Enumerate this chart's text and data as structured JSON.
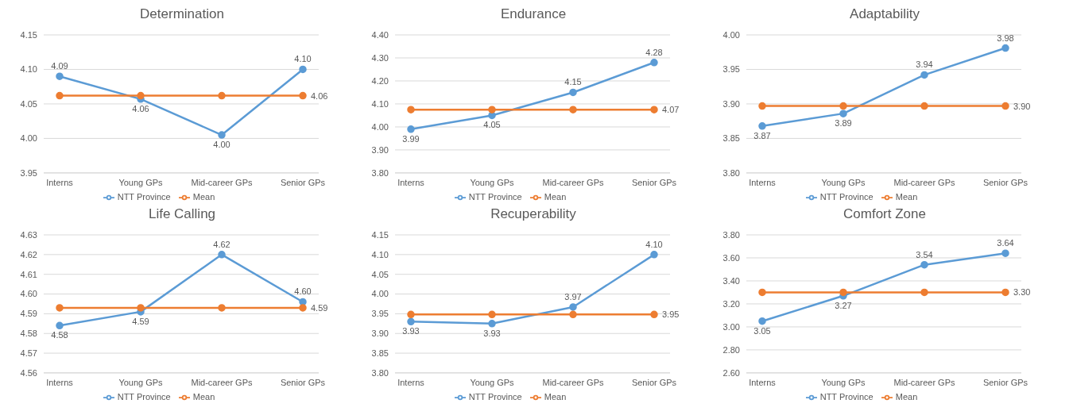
{
  "chart_data": [
    {
      "type": "line",
      "title": "Determination",
      "categories": [
        "Interns",
        "Young GPs",
        "Mid-career GPs",
        "Senior GPs"
      ],
      "ylim": [
        3.95,
        4.15
      ],
      "yticks": [
        {
          "value": 3.95,
          "label": "3.95"
        },
        {
          "value": 4.0,
          "label": "4.00"
        },
        {
          "value": 4.05,
          "label": "4.05"
        },
        {
          "value": 4.1,
          "label": "4.10"
        },
        {
          "value": 4.15,
          "label": "4.15"
        }
      ],
      "grid": "y",
      "legend": "bottom",
      "marker": "circle",
      "series": [
        {
          "name": "NTT Province",
          "color": "#5b9bd5",
          "values": [
            4.09,
            4.057,
            4.005,
            4.1
          ],
          "value_labels": [
            "4.09",
            "4.06",
            "4.00",
            "4.10"
          ]
        },
        {
          "name": "Mean",
          "color": "#ed7d31",
          "values": [
            4.062,
            4.062,
            4.062,
            4.062
          ],
          "value_labels": [
            null,
            null,
            null,
            "4.06"
          ]
        }
      ]
    },
    {
      "type": "line",
      "title": "Endurance",
      "categories": [
        "Interns",
        "Young GPs",
        "Mid-career GPs",
        "Senior GPs"
      ],
      "ylim": [
        3.8,
        4.4
      ],
      "yticks": [
        {
          "value": 3.8,
          "label": "3.80"
        },
        {
          "value": 3.9,
          "label": "3.90"
        },
        {
          "value": 4.0,
          "label": "4.00"
        },
        {
          "value": 4.1,
          "label": "4.10"
        },
        {
          "value": 4.2,
          "label": "4.20"
        },
        {
          "value": 4.3,
          "label": "4.30"
        },
        {
          "value": 4.4,
          "label": "4.40"
        }
      ],
      "grid": "y",
      "legend": "bottom",
      "marker": "circle",
      "series": [
        {
          "name": "NTT Province",
          "color": "#5b9bd5",
          "values": [
            3.99,
            4.05,
            4.15,
            4.28
          ],
          "value_labels": [
            "3.99",
            "4.05",
            "4.15",
            "4.28"
          ]
        },
        {
          "name": "Mean",
          "color": "#ed7d31",
          "values": [
            4.075,
            4.075,
            4.075,
            4.075
          ],
          "value_labels": [
            null,
            null,
            null,
            "4.07"
          ]
        }
      ]
    },
    {
      "type": "line",
      "title": "Adaptability",
      "categories": [
        "Interns",
        "Young GPs",
        "Mid-career GPs",
        "Senior GPs"
      ],
      "ylim": [
        3.8,
        4.0
      ],
      "yticks": [
        {
          "value": 3.8,
          "label": "3.80"
        },
        {
          "value": 3.85,
          "label": "3.85"
        },
        {
          "value": 3.9,
          "label": "3.90"
        },
        {
          "value": 3.95,
          "label": "3.95"
        },
        {
          "value": 4.0,
          "label": "4.00"
        }
      ],
      "grid": "y",
      "legend": "bottom",
      "marker": "circle",
      "series": [
        {
          "name": "NTT Province",
          "color": "#5b9bd5",
          "values": [
            3.868,
            3.886,
            3.942,
            3.981
          ],
          "value_labels": [
            "3.87",
            "3.89",
            "3.94",
            "3.98"
          ]
        },
        {
          "name": "Mean",
          "color": "#ed7d31",
          "values": [
            3.897,
            3.897,
            3.897,
            3.897
          ],
          "value_labels": [
            null,
            null,
            null,
            "3.90"
          ]
        }
      ]
    },
    {
      "type": "line",
      "title": "Life Calling",
      "categories": [
        "Interns",
        "Young GPs",
        "Mid-career GPs",
        "Senior GPs"
      ],
      "ylim": [
        4.56,
        4.63
      ],
      "yticks": [
        4.56,
        4.57,
        4.58,
        4.59,
        {
          "value": 4.6,
          "label": "4.60"
        },
        4.61,
        4.62,
        4.63
      ],
      "grid": "y",
      "legend": "bottom",
      "marker": "circle",
      "series": [
        {
          "name": "NTT Province",
          "color": "#5b9bd5",
          "values": [
            4.584,
            4.591,
            4.62,
            4.596
          ],
          "value_labels": [
            "4.58",
            "4.59",
            "4.62",
            "4.60"
          ]
        },
        {
          "name": "Mean",
          "color": "#ed7d31",
          "values": [
            4.593,
            4.593,
            4.593,
            4.593
          ],
          "value_labels": [
            null,
            null,
            null,
            "4.59"
          ]
        }
      ]
    },
    {
      "type": "line",
      "title": "Recuperability",
      "categories": [
        "Interns",
        "Young GPs",
        "Mid-career GPs",
        "Senior GPs"
      ],
      "ylim": [
        3.8,
        4.15
      ],
      "yticks": [
        {
          "value": 3.8,
          "label": "3.80"
        },
        {
          "value": 3.85,
          "label": "3.85"
        },
        {
          "value": 3.9,
          "label": "3.90"
        },
        {
          "value": 3.95,
          "label": "3.95"
        },
        {
          "value": 4.0,
          "label": "4.00"
        },
        {
          "value": 4.05,
          "label": "4.05"
        },
        {
          "value": 4.1,
          "label": "4.10"
        },
        {
          "value": 4.15,
          "label": "4.15"
        }
      ],
      "grid": "y",
      "legend": "bottom",
      "marker": "circle",
      "series": [
        {
          "name": "NTT Province",
          "color": "#5b9bd5",
          "values": [
            3.93,
            3.925,
            3.967,
            4.1
          ],
          "value_labels": [
            "3.93",
            "3.93",
            "3.97",
            "4.10"
          ]
        },
        {
          "name": "Mean",
          "color": "#ed7d31",
          "values": [
            3.948,
            3.948,
            3.948,
            3.948
          ],
          "value_labels": [
            null,
            null,
            null,
            "3.95"
          ]
        }
      ]
    },
    {
      "type": "line",
      "title": "Comfort Zone",
      "categories": [
        "Interns",
        "Young GPs",
        "Mid-career GPs",
        "Senior GPs"
      ],
      "ylim": [
        2.6,
        3.8
      ],
      "yticks": [
        {
          "value": 2.6,
          "label": "2.60"
        },
        {
          "value": 2.8,
          "label": "2.80"
        },
        {
          "value": 3.0,
          "label": "3.00"
        },
        {
          "value": 3.2,
          "label": "3.20"
        },
        {
          "value": 3.4,
          "label": "3.40"
        },
        {
          "value": 3.6,
          "label": "3.60"
        },
        {
          "value": 3.8,
          "label": "3.80"
        }
      ],
      "grid": "y",
      "legend": "bottom",
      "marker": "circle",
      "series": [
        {
          "name": "NTT Province",
          "color": "#5b9bd5",
          "values": [
            3.05,
            3.27,
            3.54,
            3.64
          ],
          "value_labels": [
            "3.05",
            "3.27",
            "3.54",
            "3.64"
          ]
        },
        {
          "name": "Mean",
          "color": "#ed7d31",
          "values": [
            3.3,
            3.3,
            3.3,
            3.3
          ],
          "value_labels": [
            null,
            null,
            null,
            "3.30"
          ]
        }
      ]
    }
  ]
}
